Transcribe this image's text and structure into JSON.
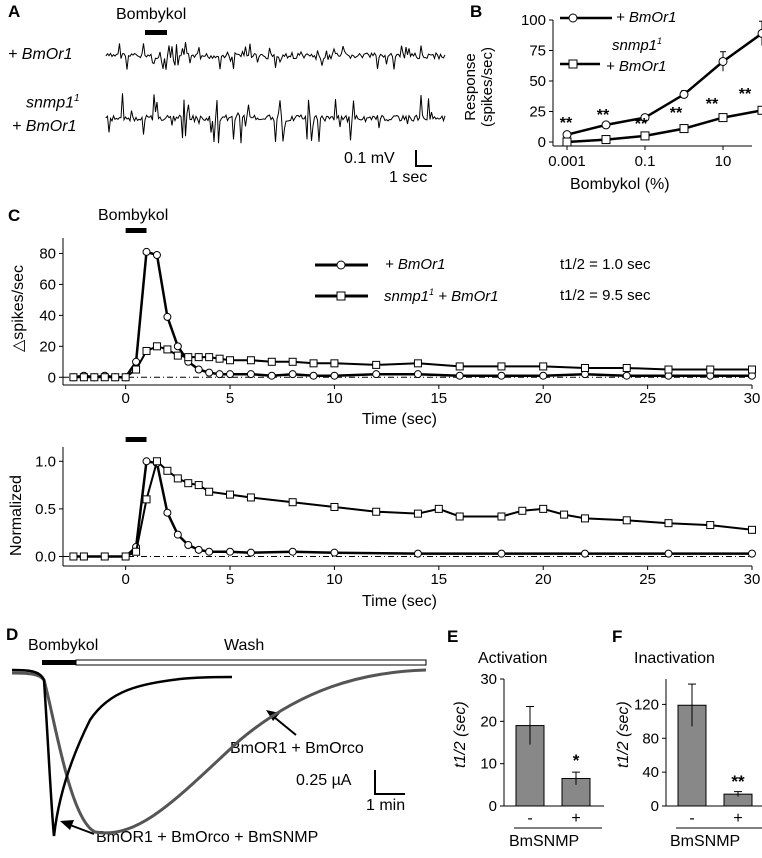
{
  "panel_labels": [
    "A",
    "B",
    "C",
    "D",
    "E",
    "F"
  ],
  "panelA": {
    "stimulus_label": "Bombykol",
    "trace_labels": [
      "+ BmOr1",
      "snmp1",
      "1",
      "+ BmOr1"
    ],
    "scale_v": "0.1 mV",
    "scale_t": "1 sec"
  },
  "panelB": {
    "ylabel_line1": "Response",
    "ylabel_line2": "(spikes/sec)",
    "xlabel": "Bombykol (%)",
    "legend": [
      "+ BmOr1",
      "snmp1",
      "1",
      "+ BmOr1"
    ],
    "sig": "**"
  },
  "panelC": {
    "stimulus_label": "Bombykol",
    "top_ylabel": "△spikes/sec",
    "bottom_ylabel": "Normalized",
    "xlabel": "Time (sec)",
    "legend_ctrl": "+ BmOr1",
    "legend_mut_a": "snmp1",
    "legend_mut_sup": "1",
    "legend_mut_b": " + BmOr1",
    "t_half_ctrl": "t1/2 = 1.0 sec",
    "t_half_mut": "t1/2 = 9.5 sec"
  },
  "panelD": {
    "stimulus_label": "Bombykol",
    "wash_label": "Wash",
    "scale_i": "0.25 µA",
    "scale_t": "1 min",
    "trace_gray": "BmOR1 + BmOrco",
    "trace_black": "BmOR1 + BmOrco + BmSNMP"
  },
  "panelE": {
    "title": "Activation",
    "ylabel": "t1/2 (sec)",
    "xlabel": "BmSNMP",
    "sig": "*"
  },
  "panelF": {
    "title": "Inactivation",
    "ylabel": "t1/2 (sec)",
    "xlabel": "BmSNMP",
    "sig": "**"
  },
  "chart_data": [
    {
      "panel": "B",
      "type": "line",
      "x": [
        0.001,
        0.01,
        0.1,
        1,
        10,
        100
      ],
      "xscale": "log",
      "xticks": [
        "0.001",
        "0.1",
        "10"
      ],
      "ylim": [
        0,
        100
      ],
      "yticks": [
        "0",
        "25",
        "50",
        "75",
        "100"
      ],
      "series": [
        {
          "name": "+ BmOr1",
          "values": [
            6,
            14,
            20,
            39,
            66,
            89
          ],
          "err": [
            2,
            2,
            2,
            3,
            8,
            10
          ]
        },
        {
          "name": "snmp1 + BmOr1",
          "values": [
            0,
            2,
            5,
            11,
            20,
            26
          ],
          "err": [
            1,
            1,
            2,
            2,
            2,
            3
          ]
        }
      ],
      "significance": [
        "**",
        "**",
        "**",
        "**",
        "**",
        "**"
      ]
    },
    {
      "panel": "C-top",
      "type": "line",
      "xlim": [
        -3,
        30
      ],
      "xticks": [
        "0",
        "5",
        "10",
        "15",
        "20",
        "25",
        "30"
      ],
      "ylim": [
        -5,
        90
      ],
      "yticks": [
        "0",
        "20",
        "40",
        "60",
        "80"
      ],
      "stimulus": [
        0,
        1
      ],
      "series": [
        {
          "name": "+ BmOr1",
          "x": [
            -2.5,
            -2,
            -1.5,
            -1,
            -0.5,
            0,
            0.5,
            1,
            1.5,
            2,
            2.5,
            3,
            3.5,
            4,
            4.5,
            5,
            6,
            7,
            8,
            9,
            10,
            12,
            14,
            16,
            18,
            20,
            22,
            24,
            26,
            28,
            30
          ],
          "values": [
            0,
            1,
            0,
            1,
            0,
            0,
            10,
            81,
            79,
            39,
            20,
            10,
            5,
            3,
            2,
            2,
            2,
            1,
            2,
            1,
            1,
            2,
            2,
            1,
            1,
            1,
            2,
            1,
            1,
            1,
            1
          ]
        },
        {
          "name": "snmp1 + BmOr1",
          "x": [
            -2.5,
            -2,
            -1.5,
            -1,
            -0.5,
            0,
            0.5,
            1,
            1.5,
            2,
            2.5,
            3,
            3.5,
            4,
            4.5,
            5,
            6,
            7,
            8,
            9,
            10,
            12,
            14,
            16,
            18,
            20,
            22,
            24,
            26,
            28,
            30
          ],
          "values": [
            0,
            0,
            0,
            0,
            0,
            0,
            5,
            17,
            20,
            18,
            14,
            13,
            13,
            13,
            12,
            11,
            11,
            10,
            10,
            9,
            9,
            8,
            9,
            7,
            7,
            7,
            6,
            6,
            5,
            5,
            5
          ]
        }
      ]
    },
    {
      "panel": "C-bottom",
      "type": "line",
      "xlim": [
        -3,
        30
      ],
      "xticks": [
        "0",
        "5",
        "10",
        "15",
        "20",
        "25",
        "30"
      ],
      "ylim": [
        -0.1,
        1.15
      ],
      "yticks": [
        "0.0",
        "0.5",
        "1.0"
      ],
      "stimulus": [
        0,
        1
      ],
      "series": [
        {
          "name": "+ BmOr1",
          "x": [
            -2.5,
            -2,
            -1,
            0,
            0.5,
            1,
            1.5,
            2,
            2.5,
            3,
            3.5,
            4,
            5,
            6,
            8,
            10,
            14,
            18,
            22,
            26,
            30
          ],
          "values": [
            0,
            0,
            0,
            0,
            0.1,
            1.0,
            0.98,
            0.46,
            0.23,
            0.12,
            0.07,
            0.05,
            0.05,
            0.04,
            0.05,
            0.04,
            0.03,
            0.03,
            0.03,
            0.03,
            0.03
          ]
        },
        {
          "name": "snmp1 + BmOr1",
          "x": [
            -2.5,
            -2,
            -1,
            0,
            0.5,
            1,
            1.5,
            2,
            2.5,
            3,
            3.5,
            4,
            5,
            6,
            8,
            10,
            12,
            14,
            15,
            16,
            18,
            19,
            20,
            21,
            22,
            24,
            26,
            28,
            30
          ],
          "values": [
            0,
            0,
            0,
            0,
            0.05,
            0.6,
            1.0,
            0.9,
            0.82,
            0.77,
            0.75,
            0.68,
            0.65,
            0.62,
            0.57,
            0.52,
            0.47,
            0.45,
            0.5,
            0.42,
            0.42,
            0.48,
            0.5,
            0.44,
            0.4,
            0.38,
            0.35,
            0.33,
            0.28
          ]
        }
      ]
    },
    {
      "panel": "E",
      "type": "bar",
      "categories": [
        "-",
        "+"
      ],
      "values": [
        19,
        6.5
      ],
      "err": [
        4.5,
        1.5
      ],
      "ylim": [
        0,
        30
      ],
      "yticks": [
        "0",
        "10",
        "20",
        "30"
      ]
    },
    {
      "panel": "F",
      "type": "bar",
      "categories": [
        "-",
        "+"
      ],
      "values": [
        119,
        14
      ],
      "err": [
        25,
        3
      ],
      "ylim": [
        0,
        150
      ],
      "yticks": [
        "0",
        "40",
        "80",
        "120"
      ]
    }
  ]
}
